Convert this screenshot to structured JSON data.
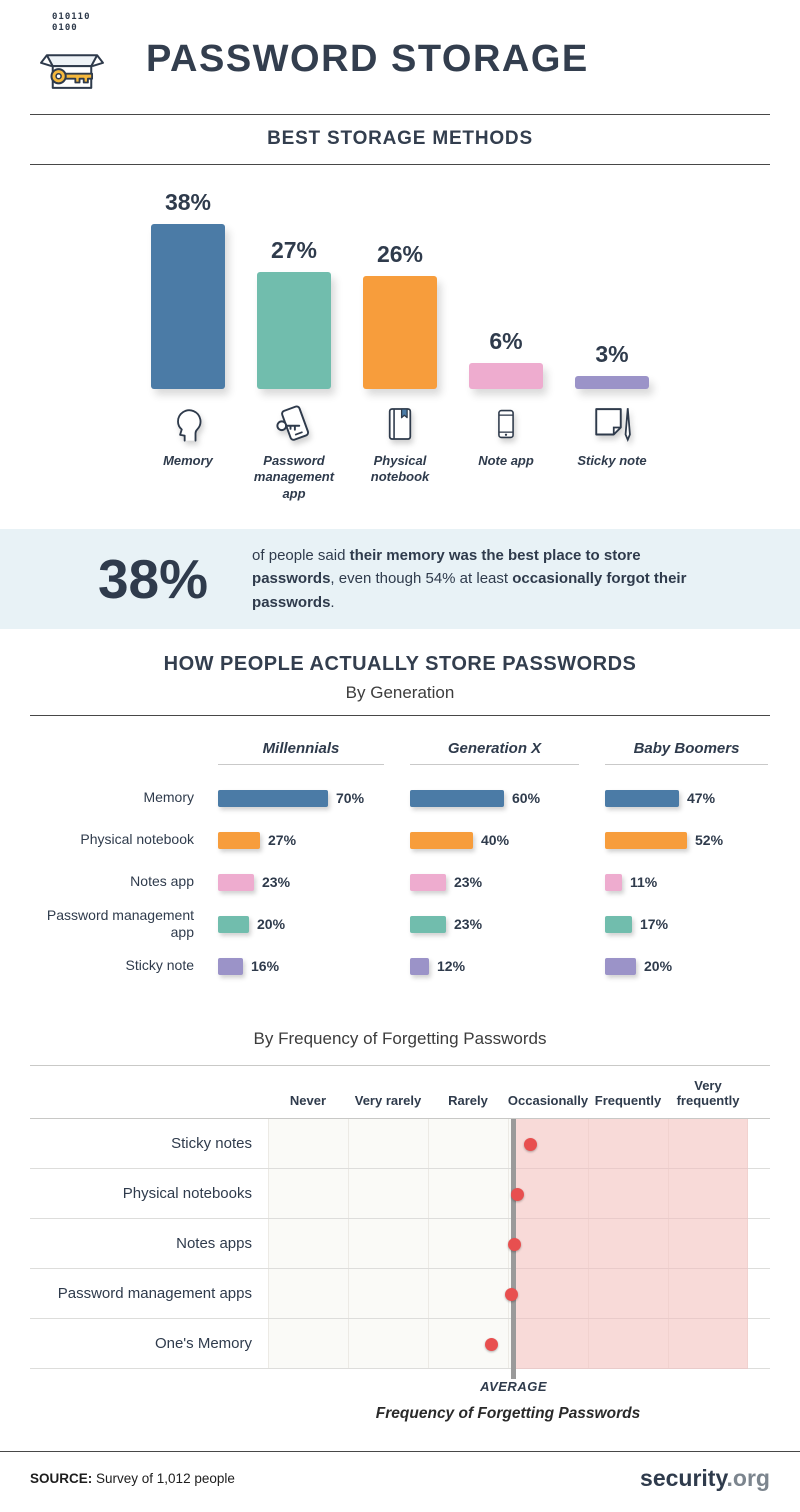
{
  "header": {
    "title": "PASSWORD STORAGE",
    "binary_line1": "010110",
    "binary_line2": "0100"
  },
  "sections": {
    "best": {
      "title": "BEST STORAGE METHODS"
    },
    "generation": {
      "title": "HOW PEOPLE ACTUALLY STORE PASSWORDS",
      "subtitle": "By Generation"
    },
    "frequency": {
      "subtitle": "By Frequency of Forgetting Passwords"
    }
  },
  "callout": {
    "stat": "38%",
    "t1": "of people said ",
    "t2": "their memory was the best place to store passwords",
    "t3": ", even though 54% at least ",
    "t4": "occasionally forgot their passwords",
    "t5": "."
  },
  "chart_data": [
    {
      "id": "best-storage-methods",
      "type": "bar",
      "title": "BEST STORAGE METHODS",
      "ylim": [
        0,
        40
      ],
      "bars": [
        {
          "label": "Memory",
          "value": 38,
          "display": "38%",
          "color": "#4b7ba6",
          "icon": "head-icon"
        },
        {
          "label": "Password management app",
          "value": 27,
          "display": "27%",
          "color": "#71bdad",
          "icon": "phone-key-icon"
        },
        {
          "label": "Physical notebook",
          "value": 26,
          "display": "26%",
          "color": "#f79d3c",
          "icon": "notebook-icon"
        },
        {
          "label": "Note app",
          "value": 6,
          "display": "6%",
          "color": "#eeaccf",
          "icon": "phone-icon"
        },
        {
          "label": "Sticky note",
          "value": 3,
          "display": "3%",
          "color": "#9b93c8",
          "icon": "sticky-note-icon"
        }
      ]
    },
    {
      "id": "storage-by-generation",
      "type": "bar",
      "orientation": "horizontal",
      "title": "HOW PEOPLE ACTUALLY STORE PASSWORDS",
      "subtitle": "By Generation",
      "xlim": [
        0,
        80
      ],
      "groups": [
        "Millennials",
        "Generation X",
        "Baby Boomers"
      ],
      "rows": [
        {
          "label": "Memory",
          "color": "#4b7ba6",
          "values": [
            70,
            60,
            47
          ],
          "displays": [
            "70%",
            "60%",
            "47%"
          ]
        },
        {
          "label": "Physical notebook",
          "color": "#f79d3c",
          "values": [
            27,
            40,
            52
          ],
          "displays": [
            "27%",
            "40%",
            "52%"
          ]
        },
        {
          "label": "Notes app",
          "color": "#eeaccf",
          "values": [
            23,
            23,
            11
          ],
          "displays": [
            "23%",
            "23%",
            "11%"
          ]
        },
        {
          "label": "Password management app",
          "color": "#71bdad",
          "values": [
            20,
            23,
            17
          ],
          "displays": [
            "20%",
            "23%",
            "17%"
          ]
        },
        {
          "label": "Sticky note",
          "color": "#9b93c8",
          "values": [
            16,
            12,
            20
          ],
          "displays": [
            "16%",
            "12%",
            "20%"
          ]
        }
      ]
    },
    {
      "id": "by-frequency-of-forgetting",
      "type": "scatter",
      "title": "By Frequency of Forgetting Passwords",
      "x_categories": [
        "Never",
        "Very rarely",
        "Rarely",
        "Occasionally",
        "Frequently",
        "Very frequently"
      ],
      "scale": [
        0,
        6
      ],
      "rows": [
        {
          "label": "Sticky notes",
          "value": 3.28
        },
        {
          "label": "Physical notebooks",
          "value": 3.12
        },
        {
          "label": "Notes apps",
          "value": 3.08
        },
        {
          "label": "Password management apps",
          "value": 3.04
        },
        {
          "label": "One's Memory",
          "value": 2.79
        }
      ],
      "average": 3.07,
      "average_label": "AVERAGE",
      "axis_title": "Frequency of Forgetting Passwords",
      "dot_color": "#e84f4f",
      "highlight_color": "#f6b9b9"
    }
  ],
  "footer": {
    "source_label": "SOURCE:",
    "source_text": " Survey of 1,012 people",
    "brand_bold": "security",
    "brand_light": ".org"
  }
}
